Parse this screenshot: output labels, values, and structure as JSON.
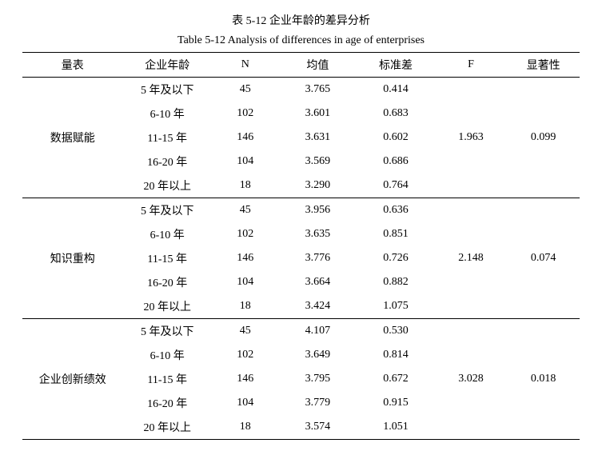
{
  "caption_cn": "表 5-12 企业年龄的差异分析",
  "caption_en": "Table 5-12 Analysis of differences in age of enterprises",
  "headers": {
    "scale": "量表",
    "age": "企业年龄",
    "n": "N",
    "mean": "均值",
    "sd": "标准差",
    "f": "F",
    "sig": "显著性"
  },
  "groups": [
    {
      "scale": "数据赋能",
      "f": "1.963",
      "sig": "0.099",
      "rows": [
        {
          "age": "5 年及以下",
          "n": "45",
          "mean": "3.765",
          "sd": "0.414"
        },
        {
          "age": "6-10 年",
          "n": "102",
          "mean": "3.601",
          "sd": "0.683"
        },
        {
          "age": "11-15 年",
          "n": "146",
          "mean": "3.631",
          "sd": "0.602"
        },
        {
          "age": "16-20 年",
          "n": "104",
          "mean": "3.569",
          "sd": "0.686"
        },
        {
          "age": "20 年以上",
          "n": "18",
          "mean": "3.290",
          "sd": "0.764"
        }
      ]
    },
    {
      "scale": "知识重构",
      "f": "2.148",
      "sig": "0.074",
      "rows": [
        {
          "age": "5 年及以下",
          "n": "45",
          "mean": "3.956",
          "sd": "0.636"
        },
        {
          "age": "6-10 年",
          "n": "102",
          "mean": "3.635",
          "sd": "0.851"
        },
        {
          "age": "11-15 年",
          "n": "146",
          "mean": "3.776",
          "sd": "0.726"
        },
        {
          "age": "16-20 年",
          "n": "104",
          "mean": "3.664",
          "sd": "0.882"
        },
        {
          "age": "20 年以上",
          "n": "18",
          "mean": "3.424",
          "sd": "1.075"
        }
      ]
    },
    {
      "scale": "企业创新绩效",
      "f": "3.028",
      "sig": "0.018",
      "rows": [
        {
          "age": "5 年及以下",
          "n": "45",
          "mean": "4.107",
          "sd": "0.530"
        },
        {
          "age": "6-10 年",
          "n": "102",
          "mean": "3.649",
          "sd": "0.814"
        },
        {
          "age": "11-15 年",
          "n": "146",
          "mean": "3.795",
          "sd": "0.672"
        },
        {
          "age": "16-20 年",
          "n": "104",
          "mean": "3.779",
          "sd": "0.915"
        },
        {
          "age": "20 年以上",
          "n": "18",
          "mean": "3.574",
          "sd": "1.051"
        }
      ]
    }
  ]
}
